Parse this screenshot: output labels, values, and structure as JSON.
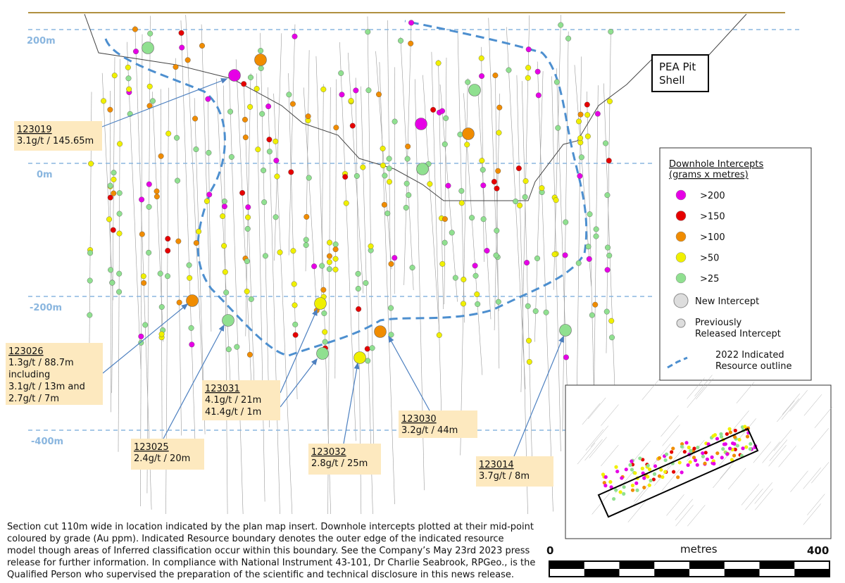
{
  "elevations": [
    "200m",
    "0m",
    "-200m",
    "-400m"
  ],
  "pit_label": "PEA Pit Shell",
  "legend": {
    "title_lines": [
      "Downhole Intercepts",
      "(grams x metres)"
    ],
    "grades": [
      {
        "label": ">200",
        "color": "#e600e6"
      },
      {
        "label": ">150",
        "color": "#e60000"
      },
      {
        "label": ">100",
        "color": "#f08c00"
      },
      {
        "label": ">50",
        "color": "#f0f000"
      },
      {
        "label": ">25",
        "color": "#90e090"
      }
    ],
    "new": "New Intercept",
    "previous_lines": [
      "Previously",
      "Released Intercept"
    ],
    "outline_lines": [
      "2022 Indicated",
      "Resource outline"
    ]
  },
  "callouts": [
    {
      "id": "123019",
      "lines": [
        "3.1g/t / 145.65m"
      ]
    },
    {
      "id": "123026",
      "lines": [
        "1.3g/t / 88.7m",
        "including",
        "3.1g/t / 13m and",
        "2.7g/t / 7m"
      ]
    },
    {
      "id": "123031",
      "lines": [
        "4.1g/t / 21m",
        "41.4g/t / 1m"
      ]
    },
    {
      "id": "123025",
      "lines": [
        "2.4g/t / 20m"
      ]
    },
    {
      "id": "123032",
      "lines": [
        "2.8g/t / 25m"
      ]
    },
    {
      "id": "123030",
      "lines": [
        "3.2g/t / 44m"
      ]
    },
    {
      "id": "123014",
      "lines": [
        "3.7g/t / 8m"
      ]
    }
  ],
  "caption": [
    "Section cut 110m wide in location indicated by the plan map insert. Downhole intercepts plotted at their mid-point",
    "coloured by grade (Au ppm). Indicated Resource boundary denotes the outer edge of the indicated resource",
    "model though areas of Inferred classification occur within this boundary. See the Company’s May 23rd 2023 press",
    "release for further information. In compliance with National Instrument 43-101, Dr Charlie Seabrook, RPGeo., is the",
    "Qualified Person who supervised the preparation of the scientific and technical disclosure in this news release."
  ],
  "scale": {
    "start": "0",
    "unit": "metres",
    "end": "400"
  }
}
